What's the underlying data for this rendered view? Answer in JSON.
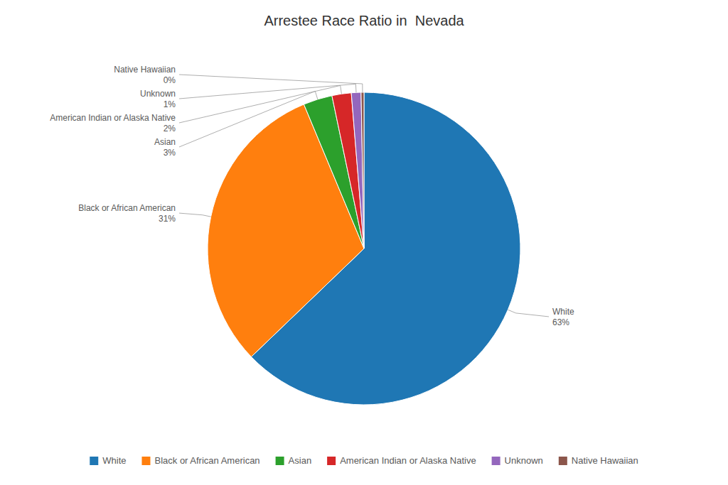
{
  "chart_data": {
    "type": "pie",
    "title": "Arrestee Race Ratio in  Nevada",
    "categories": [
      "White",
      "Black or African American",
      "Asian",
      "American Indian or Alaska Native",
      "Unknown",
      "Native Hawaiian"
    ],
    "values": [
      63,
      31,
      3,
      2,
      1,
      0.3
    ],
    "value_labels": [
      "63%",
      "31%",
      "3%",
      "2%",
      "1%",
      "0%"
    ],
    "data_labels": true,
    "legend": "bottom"
  }
}
